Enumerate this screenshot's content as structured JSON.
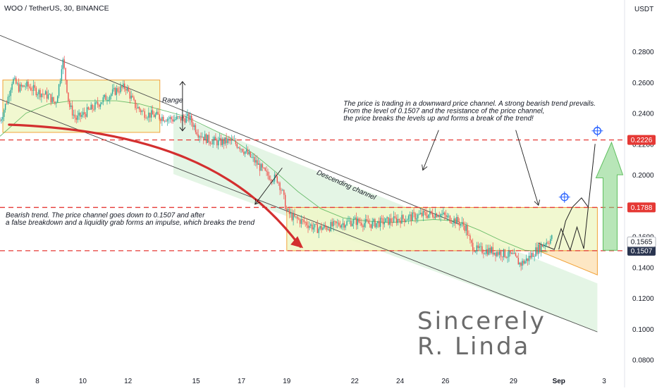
{
  "header": {
    "title": "WOO / TetherUS, 30, BINANCE",
    "currency": "USDT"
  },
  "colors": {
    "candle_up": "#26a69a",
    "candle_down": "#ef5350",
    "level_line": "#e53935",
    "box_fill": "#eef7c8",
    "box_stroke": "#f2a33a",
    "channel_fill": "#dff3e0",
    "projection": "#7ed17e",
    "price_tag": "#ffffff",
    "curve_red": "#d32f2f"
  },
  "chart_data": {
    "type": "candlestick",
    "symbol": "WOO / TetherUS",
    "timeframe": "30",
    "exchange": "BINANCE",
    "y_ticks": [
      0.28,
      0.26,
      0.24,
      0.22,
      0.2,
      0.18,
      0.16,
      0.14,
      0.12,
      0.1,
      0.08
    ],
    "y_tick_labels": [
      "0.2800",
      "0.2600",
      "0.2400",
      "0.2200",
      "0.2000",
      "0.1800",
      "0.1600",
      "0.1400",
      "0.1200",
      "0.1000",
      "0.0800"
    ],
    "ylim": [
      0.072,
      0.302
    ],
    "x_tick_labels": [
      "8",
      "10",
      "12",
      "15",
      "17",
      "19",
      "22",
      "24",
      "26",
      "29",
      "Sep",
      "3"
    ],
    "x_tick_positions": [
      0.5,
      2.5,
      4.5,
      7.5,
      9.5,
      11.5,
      14.5,
      16.5,
      18.5,
      21.5,
      23.5,
      25.5
    ],
    "xlim": [
      -1.15,
      26.4
    ],
    "levels": [
      {
        "value": 0.2226,
        "label": "0.2226"
      },
      {
        "value": 0.1788,
        "label": "0.1788"
      },
      {
        "value": 0.1507,
        "label": "0.1507"
      }
    ],
    "current_price": {
      "value": 0.1565,
      "label": "0.1565"
    },
    "price_path": [
      [
        -1.15,
        0.235
      ],
      [
        -0.8,
        0.25
      ],
      [
        -0.6,
        0.262
      ],
      [
        -0.3,
        0.256
      ],
      [
        0.0,
        0.258
      ],
      [
        0.5,
        0.254
      ],
      [
        1.0,
        0.251
      ],
      [
        1.3,
        0.246
      ],
      [
        1.5,
        0.262
      ],
      [
        1.6,
        0.276
      ],
      [
        1.75,
        0.262
      ],
      [
        1.9,
        0.245
      ],
      [
        2.2,
        0.236
      ],
      [
        2.6,
        0.24
      ],
      [
        3.0,
        0.244
      ],
      [
        3.5,
        0.25
      ],
      [
        4.0,
        0.255
      ],
      [
        4.4,
        0.257
      ],
      [
        4.8,
        0.245
      ],
      [
        5.2,
        0.24
      ],
      [
        5.8,
        0.238
      ],
      [
        6.5,
        0.236
      ],
      [
        7.2,
        0.237
      ],
      [
        7.6,
        0.227
      ],
      [
        8.0,
        0.223
      ],
      [
        8.5,
        0.221
      ],
      [
        9.0,
        0.222
      ],
      [
        9.4,
        0.219
      ],
      [
        9.8,
        0.213
      ],
      [
        10.2,
        0.207
      ],
      [
        10.6,
        0.2
      ],
      [
        10.9,
        0.198
      ],
      [
        11.1,
        0.197
      ],
      [
        11.3,
        0.189
      ],
      [
        11.5,
        0.176
      ],
      [
        11.8,
        0.172
      ],
      [
        12.3,
        0.169
      ],
      [
        12.8,
        0.165
      ],
      [
        13.3,
        0.166
      ],
      [
        13.8,
        0.168
      ],
      [
        14.5,
        0.17
      ],
      [
        15.2,
        0.168
      ],
      [
        16.0,
        0.17
      ],
      [
        16.8,
        0.172
      ],
      [
        17.5,
        0.174
      ],
      [
        18.2,
        0.175
      ],
      [
        18.6,
        0.172
      ],
      [
        19.0,
        0.17
      ],
      [
        19.4,
        0.166
      ],
      [
        19.6,
        0.155
      ],
      [
        19.9,
        0.151
      ],
      [
        20.4,
        0.151
      ],
      [
        21.0,
        0.149
      ],
      [
        21.5,
        0.147
      ],
      [
        21.8,
        0.142
      ],
      [
        22.1,
        0.145
      ],
      [
        22.5,
        0.151
      ],
      [
        22.9,
        0.156
      ],
      [
        23.2,
        0.159
      ]
    ],
    "ma_path": [
      [
        -1.15,
        0.225
      ],
      [
        0.0,
        0.24
      ],
      [
        1.0,
        0.246
      ],
      [
        2.0,
        0.248
      ],
      [
        3.0,
        0.248
      ],
      [
        4.0,
        0.248
      ],
      [
        5.0,
        0.246
      ],
      [
        6.0,
        0.242
      ],
      [
        7.0,
        0.238
      ],
      [
        8.0,
        0.231
      ],
      [
        9.0,
        0.224
      ],
      [
        10.0,
        0.214
      ],
      [
        11.0,
        0.202
      ],
      [
        12.0,
        0.189
      ],
      [
        13.0,
        0.178
      ],
      [
        14.0,
        0.172
      ],
      [
        15.0,
        0.17
      ],
      [
        16.0,
        0.169
      ],
      [
        17.0,
        0.17
      ],
      [
        18.0,
        0.171
      ],
      [
        19.0,
        0.17
      ],
      [
        20.0,
        0.164
      ],
      [
        21.0,
        0.157
      ],
      [
        22.0,
        0.151
      ],
      [
        23.0,
        0.15
      ]
    ],
    "range_box": {
      "x0": -1.15,
      "x1": 5.9,
      "y_top": 0.2615,
      "y_bottom": 0.2275
    },
    "channel": {
      "upper": [
        [
          -1.15,
          0.2905
        ],
        [
          19.1,
          0.168
        ]
      ],
      "lower": [
        [
          -1.15,
          0.249
        ],
        [
          25.2,
          0.098
        ]
      ],
      "fill_upper": [
        [
          6.5,
          0.2395
        ],
        [
          25.2,
          0.1295
        ]
      ],
      "fill_lower": [
        [
          6.5,
          0.2005
        ],
        [
          25.2,
          0.098
        ]
      ]
    },
    "accumulation_box": {
      "x0": 11.5,
      "x1": 25.2,
      "y_top": 0.1788,
      "y_bottom": 0.1507
    },
    "annotations": [
      {
        "text": "Range",
        "x": 6.0,
        "y": 0.247
      },
      {
        "text": "Descending channel",
        "x": 12.8,
        "y": 0.2005,
        "rotate": 24
      },
      {
        "text": "The price is trading in a downward price channel. A strong bearish trend prevails.",
        "x": 14.0,
        "y": 0.2449
      },
      {
        "text": "From the level of 0.1507 and the resistance of the price channel,",
        "x": 14.0,
        "y": 0.2401
      },
      {
        "text": "the price breaks the levels up and forms a break of the trend!",
        "x": 14.0,
        "y": 0.2352
      },
      {
        "text": "Bearish trend. The price channel goes down to 0.1507 and after",
        "x": -0.9,
        "y": 0.1724
      },
      {
        "text": "a false breakdown and a liquidity grab forms an impulse, which breaks the trend",
        "x": -0.9,
        "y": 0.1675
      }
    ],
    "signature": [
      "Sincerely",
      "R. Linda"
    ]
  }
}
